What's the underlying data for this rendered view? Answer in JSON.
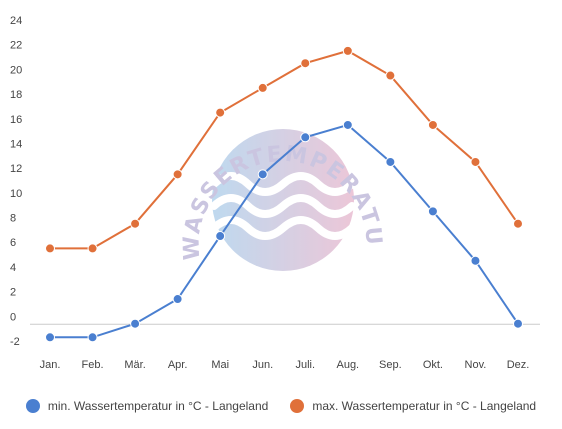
{
  "chart_data": {
    "type": "line",
    "categories": [
      "Jan.",
      "Feb.",
      "Mär.",
      "Apr.",
      "Mai",
      "Jun.",
      "Juli.",
      "Aug.",
      "Sep.",
      "Okt.",
      "Nov.",
      "Dez."
    ],
    "series": [
      {
        "name": "min. Wassertemperatur in °C - Langeland",
        "color": "#4a7fd0",
        "values": [
          -1.7,
          -1.7,
          -0.6,
          1.4,
          6.5,
          11.5,
          14.5,
          15.5,
          12.5,
          8.5,
          4.5,
          -0.6
        ]
      },
      {
        "name": "max. Wassertemperatur in °C - Langeland",
        "color": "#e0703a",
        "values": [
          5.5,
          5.5,
          7.5,
          11.5,
          16.5,
          18.5,
          20.5,
          21.5,
          19.5,
          15.5,
          12.5,
          7.5
        ]
      }
    ],
    "y_ticks": [
      "24",
      "22",
      "20",
      "18",
      "16",
      "14",
      "12",
      "10",
      "8",
      "6",
      "4",
      "2",
      "0",
      "-2"
    ],
    "ylim": [
      -2,
      24
    ],
    "grid": false,
    "legend_position": "bottom",
    "watermark": "WASSERTEMPERATUR.ORG"
  }
}
